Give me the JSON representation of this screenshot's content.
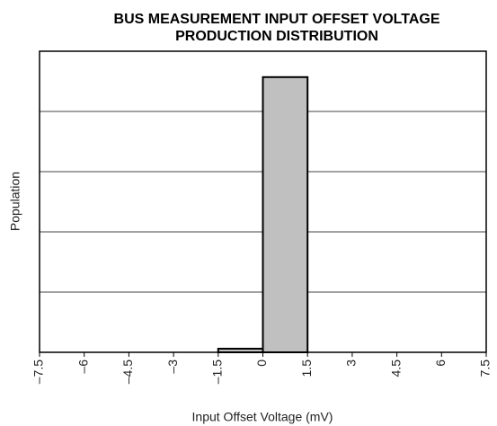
{
  "chart_data": {
    "type": "histogram",
    "title": "BUS MEASUREMENT INPUT OFFSET VOLTAGE",
    "subtitle": "PRODUCTION DISTRIBUTION",
    "x_label": "Input Offset Voltage (mV)",
    "y_label": "Population",
    "bins": [
      -7.5,
      -6,
      -4.5,
      -3,
      -1.5,
      0,
      1.5,
      3,
      4.5,
      6,
      7.5
    ],
    "values": [
      0,
      0,
      0,
      0,
      0.06,
      4.57,
      0,
      0,
      0,
      0
    ],
    "color": "#c0c0c0",
    "xlim": [
      -7.5,
      7.5
    ],
    "xticks": [
      {
        "value": -7.5,
        "label": "–7.5"
      },
      {
        "value": -6,
        "label": "–6"
      },
      {
        "value": -4.5,
        "label": "–4.5"
      },
      {
        "value": -3,
        "label": "–3"
      },
      {
        "value": -1.5,
        "label": "–1.5"
      },
      0,
      1.5,
      3,
      4.5,
      6,
      7.5
    ],
    "ylim": [
      0,
      5
    ],
    "yticks": [
      0,
      1,
      2,
      3,
      4,
      5
    ],
    "grid": true
  }
}
